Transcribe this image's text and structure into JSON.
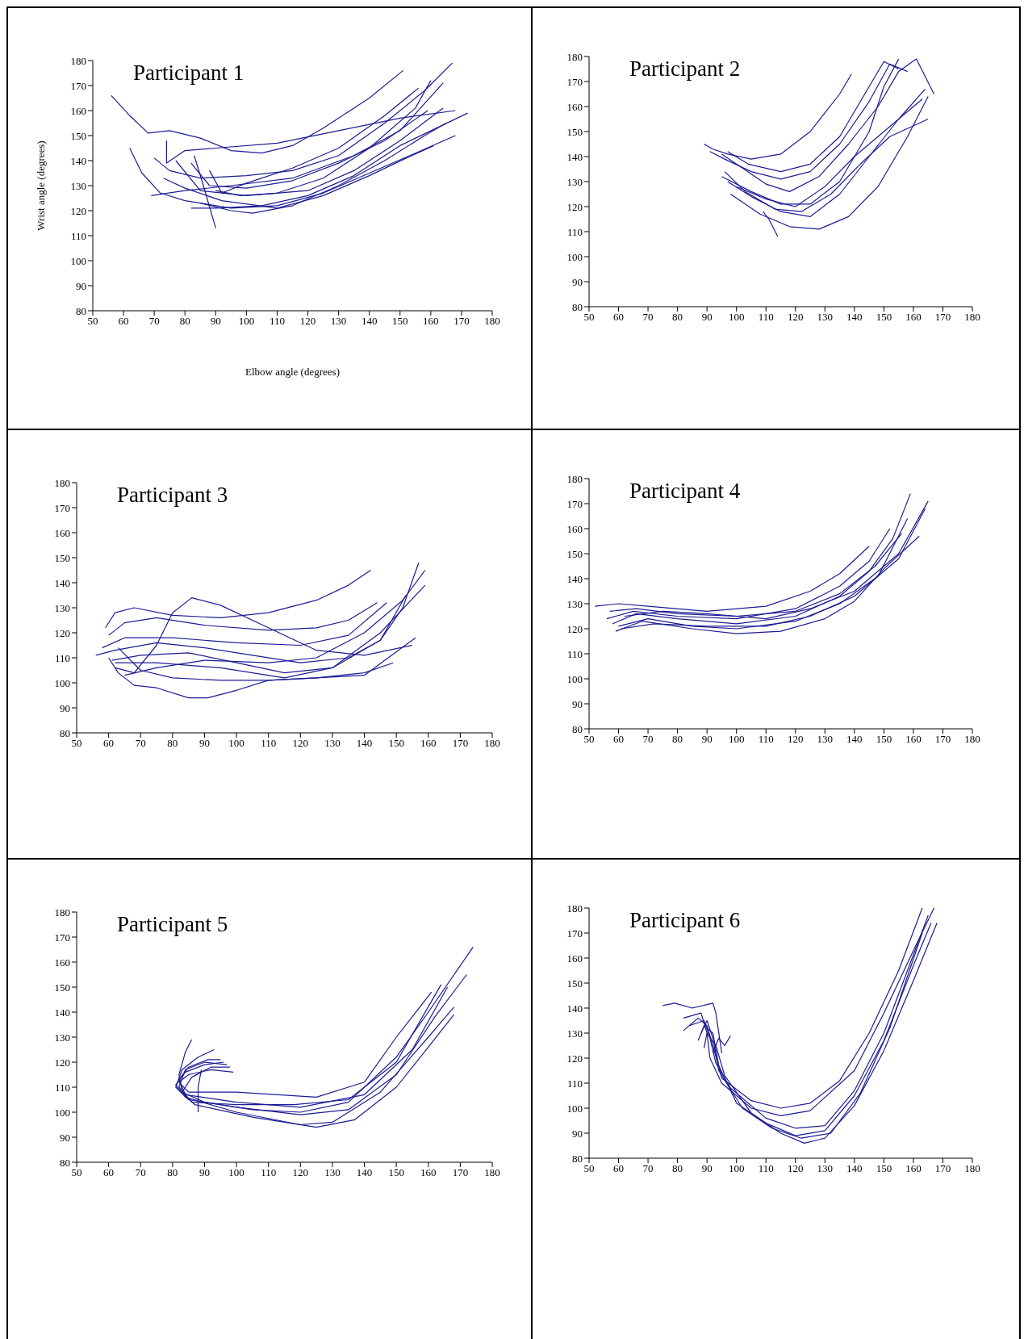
{
  "chart_data": [
    {
      "type": "line",
      "title": "Participant 1",
      "xlabel": "Elbow angle (degrees)",
      "ylabel": "Wrist angle (degrees)",
      "xlim": [
        50,
        180
      ],
      "xticks": [
        50,
        60,
        70,
        80,
        90,
        100,
        110,
        120,
        130,
        140,
        150,
        160,
        170,
        180
      ],
      "ylim": [
        80,
        180
      ],
      "yticks": [
        80,
        90,
        100,
        110,
        120,
        130,
        140,
        150,
        160,
        170,
        180
      ],
      "marker": "none",
      "series": [
        {
          "color": "#1c1c94",
          "x": [
            56,
            62,
            68,
            75,
            85,
            95,
            105,
            115,
            125,
            140,
            151
          ],
          "values": [
            166,
            158,
            151,
            152,
            149,
            144,
            143,
            146,
            153,
            165,
            176
          ]
        },
        {
          "color": "#1c1c94",
          "x": [
            74,
            74,
            80,
            90,
            110,
            130,
            150,
            168
          ],
          "values": [
            148,
            139,
            144,
            145,
            147,
            152,
            157,
            160
          ]
        },
        {
          "color": "#1c1c94",
          "x": [
            62,
            66,
            72,
            80,
            95,
            110,
            125,
            140,
            155,
            168
          ],
          "values": [
            145,
            135,
            127,
            124,
            121,
            122,
            127,
            135,
            143,
            150
          ]
        },
        {
          "color": "#1c1c94",
          "x": [
            70,
            75,
            85,
            100,
            115,
            130,
            145,
            158,
            167
          ],
          "values": [
            141,
            136,
            133,
            134,
            136,
            142,
            155,
            168,
            179
          ]
        },
        {
          "color": "#1c1c94",
          "x": [
            83,
            86,
            90
          ],
          "values": [
            142,
            130,
            113
          ]
        },
        {
          "color": "#1c1c94",
          "x": [
            82,
            88,
            100,
            115,
            130,
            145,
            159
          ],
          "values": [
            139,
            130,
            129,
            132,
            139,
            148,
            160
          ]
        },
        {
          "color": "#1c1c94",
          "x": [
            77,
            85,
            100,
            120,
            135,
            150,
            164
          ],
          "values": [
            140,
            128,
            126,
            128,
            136,
            148,
            161
          ]
        },
        {
          "color": "#1c1c94",
          "x": [
            73,
            80,
            92,
            110,
            125,
            140,
            152,
            161
          ],
          "values": [
            133,
            129,
            124,
            121,
            126,
            134,
            141,
            146
          ]
        },
        {
          "color": "#1c1c94",
          "x": [
            85,
            95,
            102,
            115,
            130,
            145,
            158,
            165
          ],
          "values": [
            123,
            120,
            119,
            122,
            130,
            140,
            150,
            155
          ]
        },
        {
          "color": "#1c1c94",
          "x": [
            88,
            92,
            100,
            115,
            130,
            145,
            156
          ],
          "values": [
            136,
            127,
            131,
            137,
            145,
            158,
            169
          ]
        },
        {
          "color": "#1c1c94",
          "x": [
            69,
            80,
            95,
            115,
            135,
            150,
            164
          ],
          "values": [
            126,
            128,
            130,
            133,
            142,
            152,
            171
          ]
        },
        {
          "color": "#1c1c94",
          "x": [
            90,
            98,
            110,
            125,
            140,
            155,
            160
          ],
          "values": [
            128,
            126,
            127,
            133,
            145,
            161,
            172
          ]
        },
        {
          "color": "#1c1c94",
          "x": [
            82,
            90,
            105,
            120,
            135,
            150,
            172
          ],
          "values": [
            121,
            121,
            122,
            126,
            134,
            146,
            159
          ]
        }
      ]
    },
    {
      "type": "line",
      "title": "Participant 2",
      "xlim": [
        50,
        180
      ],
      "xticks": [
        50,
        60,
        70,
        80,
        90,
        100,
        110,
        120,
        130,
        140,
        150,
        160,
        170,
        180
      ],
      "ylim": [
        80,
        180
      ],
      "yticks": [
        80,
        90,
        100,
        110,
        120,
        130,
        140,
        150,
        160,
        170,
        180
      ],
      "marker": "none",
      "series": [
        {
          "color": "#1c1c94",
          "x": [
            89,
            92,
            97,
            105,
            115,
            125,
            135,
            139
          ],
          "values": [
            145,
            143,
            141,
            139,
            141,
            150,
            165,
            173
          ]
        },
        {
          "color": "#1c1c94",
          "x": [
            91,
            96,
            105,
            115,
            125,
            135,
            145,
            152,
            158
          ],
          "values": [
            142,
            139,
            134,
            131,
            134,
            145,
            162,
            177,
            174
          ]
        },
        {
          "color": "#1c1c94",
          "x": [
            95,
            100,
            110,
            118,
            128,
            138,
            148,
            155,
            161,
            167
          ],
          "values": [
            141,
            137,
            129,
            126,
            132,
            145,
            160,
            174,
            179,
            165
          ]
        },
        {
          "color": "#1c1c94",
          "x": [
            96,
            103,
            113,
            122,
            132,
            142,
            152,
            165
          ],
          "values": [
            134,
            126,
            119,
            118,
            125,
            137,
            148,
            155
          ]
        },
        {
          "color": "#1c1c94",
          "x": [
            97,
            105,
            115,
            125,
            135,
            145,
            155,
            164
          ],
          "values": [
            130,
            124,
            118,
            116,
            125,
            140,
            155,
            167
          ]
        },
        {
          "color": "#1c1c94",
          "x": [
            98,
            108,
            118,
            128,
            138,
            148,
            158,
            165
          ],
          "values": [
            125,
            117,
            112,
            111,
            116,
            128,
            148,
            164
          ]
        },
        {
          "color": "#1c1c94",
          "x": [
            95,
            105,
            115,
            125,
            135,
            145,
            150,
            155
          ],
          "values": [
            132,
            126,
            121,
            121,
            130,
            150,
            168,
            179
          ]
        },
        {
          "color": "#1c1c94",
          "x": [
            109,
            111,
            114
          ],
          "values": [
            118,
            115,
            108
          ]
        },
        {
          "color": "#1c1c94",
          "x": [
            97,
            104,
            115,
            125,
            135,
            145,
            150,
            155
          ],
          "values": [
            142,
            137,
            134,
            137,
            148,
            168,
            178,
            175
          ]
        },
        {
          "color": "#1c1c94",
          "x": [
            100,
            110,
            120,
            130,
            140,
            150,
            163
          ],
          "values": [
            128,
            123,
            120,
            128,
            140,
            150,
            163
          ]
        }
      ]
    },
    {
      "type": "line",
      "title": "Participant 3",
      "xlim": [
        50,
        180
      ],
      "xticks": [
        50,
        60,
        70,
        80,
        90,
        100,
        110,
        120,
        130,
        140,
        150,
        160,
        170,
        180
      ],
      "ylim": [
        80,
        180
      ],
      "yticks": [
        80,
        90,
        100,
        110,
        120,
        130,
        140,
        150,
        160,
        170,
        180
      ],
      "marker": "none",
      "series": [
        {
          "color": "#1c1c94",
          "x": [
            59,
            62,
            68,
            80,
            95,
            110,
            125,
            135,
            142
          ],
          "values": [
            122,
            128,
            130,
            127,
            126,
            128,
            133,
            139,
            145
          ]
        },
        {
          "color": "#1c1c94",
          "x": [
            60,
            65,
            75,
            90,
            110,
            125,
            135,
            144
          ],
          "values": [
            119,
            124,
            126,
            123,
            121,
            122,
            125,
            132
          ]
        },
        {
          "color": "#1c1c94",
          "x": [
            56,
            62,
            75,
            90,
            105,
            120,
            135,
            145,
            152,
            157
          ],
          "values": [
            111,
            113,
            116,
            114,
            111,
            108,
            110,
            117,
            130,
            148
          ]
        },
        {
          "color": "#1c1c94",
          "x": [
            61,
            70,
            85,
            100,
            115,
            130,
            145,
            153
          ],
          "values": [
            109,
            111,
            112,
            108,
            104,
            106,
            117,
            135
          ]
        },
        {
          "color": "#1c1c94",
          "x": [
            62,
            68,
            75,
            80,
            86,
            95,
            110,
            125,
            140,
            155
          ],
          "values": [
            106,
            104,
            115,
            128,
            134,
            131,
            122,
            113,
            111,
            115
          ]
        },
        {
          "color": "#1c1c94",
          "x": [
            60,
            63,
            68,
            75,
            85,
            91,
            100,
            110,
            125,
            140,
            156
          ],
          "values": [
            110,
            104,
            99,
            98,
            94,
            94,
            97,
            101,
            102,
            103,
            118
          ]
        },
        {
          "color": "#1c1c94",
          "x": [
            63,
            70,
            80,
            95,
            110,
            125,
            140,
            149
          ],
          "values": [
            114,
            105,
            102,
            101,
            101,
            102,
            104,
            108
          ]
        },
        {
          "color": "#1c1c94",
          "x": [
            58,
            65,
            80,
            100,
            120,
            135,
            147
          ],
          "values": [
            114,
            118,
            118,
            116,
            115,
            119,
            132
          ]
        },
        {
          "color": "#1c1c94",
          "x": [
            62,
            75,
            95,
            115,
            130,
            145,
            159
          ],
          "values": [
            108,
            108,
            106,
            102,
            106,
            120,
            139
          ]
        },
        {
          "color": "#1c1c94",
          "x": [
            65,
            75,
            90,
            110,
            125,
            140,
            152,
            159
          ],
          "values": [
            103,
            106,
            109,
            108,
            110,
            120,
            133,
            145
          ]
        }
      ]
    },
    {
      "type": "line",
      "title": "Participant 4",
      "xlim": [
        50,
        180
      ],
      "xticks": [
        50,
        60,
        70,
        80,
        90,
        100,
        110,
        120,
        130,
        140,
        150,
        160,
        170,
        180
      ],
      "ylim": [
        80,
        180
      ],
      "yticks": [
        80,
        90,
        100,
        110,
        120,
        130,
        140,
        150,
        160,
        170,
        180
      ],
      "marker": "none",
      "series": [
        {
          "color": "#1c1c94",
          "x": [
            52,
            60,
            70,
            90,
            110,
            125,
            135,
            145
          ],
          "values": [
            129,
            130,
            129,
            127,
            129,
            135,
            142,
            153
          ]
        },
        {
          "color": "#1c1c94",
          "x": [
            56,
            65,
            80,
            100,
            120,
            135,
            145,
            152
          ],
          "values": [
            124,
            127,
            125,
            124,
            128,
            137,
            147,
            160
          ]
        },
        {
          "color": "#1c1c94",
          "x": [
            58,
            66,
            80,
            100,
            120,
            135,
            145,
            153,
            159
          ],
          "values": [
            122,
            126,
            124,
            122,
            125,
            133,
            143,
            156,
            174
          ]
        },
        {
          "color": "#1c1c94",
          "x": [
            60,
            70,
            85,
            100,
            120,
            135,
            148,
            158
          ],
          "values": [
            121,
            124,
            121,
            120,
            123,
            130,
            141,
            164
          ]
        },
        {
          "color": "#1c1c94",
          "x": [
            59,
            68,
            85,
            100,
            115,
            130,
            140,
            150,
            162
          ],
          "values": [
            119,
            123,
            120,
            118,
            119,
            124,
            131,
            144,
            157
          ]
        },
        {
          "color": "#1c1c94",
          "x": [
            62,
            75,
            90,
            110,
            125,
            140,
            155,
            165
          ],
          "values": [
            125,
            127,
            126,
            124,
            128,
            135,
            150,
            171
          ]
        },
        {
          "color": "#1c1c94",
          "x": [
            57,
            66,
            80,
            100,
            120,
            135,
            147,
            156
          ],
          "values": [
            127,
            128,
            126,
            125,
            127,
            134,
            145,
            158
          ]
        },
        {
          "color": "#1c1c94",
          "x": [
            61,
            72,
            90,
            110,
            125,
            140,
            155,
            164
          ],
          "values": [
            120,
            122,
            121,
            121,
            125,
            133,
            148,
            168
          ]
        }
      ]
    },
    {
      "type": "line",
      "title": "Participant 5",
      "xlim": [
        50,
        180
      ],
      "xticks": [
        50,
        60,
        70,
        80,
        90,
        100,
        110,
        120,
        130,
        140,
        150,
        160,
        170,
        180
      ],
      "ylim": [
        80,
        180
      ],
      "yticks": [
        80,
        90,
        100,
        110,
        120,
        130,
        140,
        150,
        160,
        170,
        180
      ],
      "marker": "none",
      "series": [
        {
          "color": "#1c1c94",
          "x": [
            86,
            84,
            82,
            83,
            90,
            105,
            120,
            135,
            150,
            160,
            174
          ],
          "values": [
            129,
            124,
            115,
            108,
            104,
            101,
            100,
            104,
            122,
            140,
            166
          ]
        },
        {
          "color": "#1c1c94",
          "x": [
            93,
            88,
            83,
            81,
            85,
            100,
            120,
            135,
            150,
            162,
            172
          ],
          "values": [
            125,
            122,
            117,
            110,
            105,
            102,
            99,
            101,
            115,
            138,
            155
          ]
        },
        {
          "color": "#1c1c94",
          "x": [
            96,
            90,
            84,
            81,
            84,
            100,
            120,
            130,
            145,
            160,
            168
          ],
          "values": [
            120,
            119,
            116,
            111,
            106,
            100,
            95,
            96,
            108,
            130,
            142
          ]
        },
        {
          "color": "#1c1c94",
          "x": [
            99,
            92,
            85,
            82,
            85,
            100,
            125,
            140,
            150,
            161
          ],
          "values": [
            116,
            117,
            115,
            112,
            108,
            108,
            106,
            112,
            130,
            148
          ]
        },
        {
          "color": "#1c1c94",
          "x": [
            97,
            90,
            84,
            82,
            86,
            100,
            118,
            135,
            150,
            164
          ],
          "values": [
            119,
            120,
            117,
            110,
            104,
            103,
            103,
            105,
            120,
            151
          ]
        },
        {
          "color": "#1c1c94",
          "x": [
            88,
            88,
            89
          ],
          "values": [
            100,
            110,
            117
          ]
        },
        {
          "color": "#1c1c94",
          "x": [
            98,
            92,
            86,
            83,
            87,
            105,
            125,
            137,
            150,
            160,
            168
          ],
          "values": [
            118,
            118,
            114,
            108,
            103,
            98,
            94,
            97,
            110,
            126,
            139
          ]
        },
        {
          "color": "#1c1c94",
          "x": [
            95,
            91,
            85,
            82,
            84,
            100,
            120,
            140,
            155,
            166
          ],
          "values": [
            121,
            121,
            118,
            113,
            107,
            104,
            102,
            107,
            125,
            150
          ]
        }
      ]
    },
    {
      "type": "line",
      "title": "Participant 6",
      "xlim": [
        50,
        180
      ],
      "xticks": [
        50,
        60,
        70,
        80,
        90,
        100,
        110,
        120,
        130,
        140,
        150,
        160,
        170,
        180
      ],
      "ylim": [
        80,
        180
      ],
      "yticks": [
        80,
        90,
        100,
        110,
        120,
        130,
        140,
        150,
        160,
        170,
        180
      ],
      "marker": "none",
      "series": [
        {
          "color": "#1c1c94",
          "x": [
            75,
            79,
            85,
            92,
            93,
            95
          ],
          "values": [
            141,
            142,
            140,
            142,
            138,
            122
          ]
        },
        {
          "color": "#1c1c94",
          "x": [
            82,
            87,
            90,
            92,
            95,
            105,
            115,
            125,
            135,
            145,
            155,
            163
          ],
          "values": [
            131,
            136,
            133,
            125,
            112,
            103,
            100,
            102,
            111,
            130,
            155,
            180
          ]
        },
        {
          "color": "#1c1c94",
          "x": [
            82,
            88,
            90,
            91,
            95,
            105,
            115,
            125,
            140,
            150,
            160,
            167
          ],
          "values": [
            136,
            138,
            130,
            120,
            110,
            100,
            97,
            99,
            115,
            138,
            163,
            180
          ]
        },
        {
          "color": "#1c1c94",
          "x": [
            84,
            89,
            91,
            93,
            98,
            110,
            120,
            130,
            140,
            150,
            158,
            165
          ],
          "values": [
            133,
            135,
            128,
            118,
            108,
            96,
            92,
            93,
            107,
            130,
            155,
            177
          ]
        },
        {
          "color": "#1c1c94",
          "x": [
            87,
            89,
            92,
            94,
            100,
            110,
            120,
            130,
            140,
            150,
            160,
            166
          ],
          "values": [
            127,
            133,
            130,
            117,
            102,
            94,
            89,
            91,
            105,
            127,
            157,
            174
          ]
        },
        {
          "color": "#1c1c94",
          "x": [
            89,
            90,
            93,
            96,
            105,
            115,
            123,
            130,
            140,
            150,
            160,
            168
          ],
          "values": [
            124,
            130,
            125,
            113,
            98,
            90,
            86,
            88,
            101,
            123,
            151,
            174
          ]
        },
        {
          "color": "#1c1c94",
          "x": [
            92,
            94,
            96,
            98
          ],
          "values": [
            122,
            128,
            125,
            129
          ]
        },
        {
          "color": "#1c1c94",
          "x": [
            88,
            90,
            92,
            94,
            102,
            112,
            122,
            132,
            142,
            152,
            163
          ],
          "values": [
            130,
            135,
            128,
            115,
            100,
            92,
            88,
            90,
            106,
            132,
            170
          ]
        }
      ]
    }
  ]
}
